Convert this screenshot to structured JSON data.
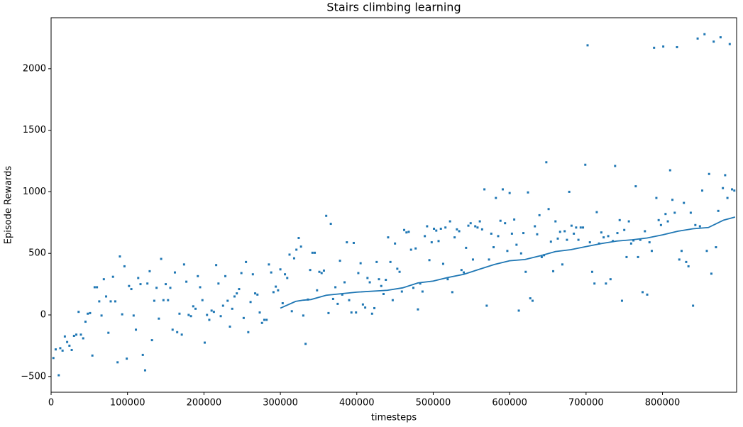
{
  "chart_data": {
    "type": "scatter",
    "title": "Stairs climbing learning",
    "xlabel": "timesteps",
    "ylabel": "Episode Rewards",
    "xlim": [
      0,
      897000
    ],
    "ylim": [
      -628,
      2414
    ],
    "xticks": [
      0,
      100000,
      200000,
      300000,
      400000,
      500000,
      600000,
      700000,
      800000
    ],
    "yticks": [
      {
        "value": -500,
        "label": "−500"
      },
      0,
      500,
      1000,
      1500,
      2000
    ],
    "series": [
      {
        "type": "scatter",
        "color": "#1f77b4",
        "x": [
          3000,
          6000,
          10000,
          12000,
          15000,
          18000,
          21000,
          24000,
          27000,
          30000,
          33000,
          36000,
          39000,
          42000,
          45000,
          48000,
          51000,
          54000,
          57000,
          60000,
          63000,
          66000,
          69000,
          72000,
          75000,
          78000,
          81000,
          84000,
          87000,
          90000,
          93000,
          96000,
          99000,
          102000,
          105000,
          108000,
          111000,
          114000,
          117000,
          120000,
          123000,
          126000,
          129000,
          132000,
          135000,
          138000,
          141000,
          144000,
          147000,
          150000,
          153000,
          156000,
          159000,
          162000,
          165000,
          168000,
          171000,
          174000,
          177000,
          180000,
          183000,
          186000,
          189000,
          192000,
          195000,
          198000,
          201000,
          204000,
          207000,
          210000,
          213000,
          216000,
          219000,
          222000,
          225000,
          228000,
          231000,
          234000,
          237000,
          240000,
          243000,
          246000,
          249000,
          252000,
          255000,
          258000,
          261000,
          264000,
          267000,
          270000,
          273000,
          276000,
          279000,
          282000,
          285000,
          288000,
          291000,
          294000,
          297000,
          300000,
          303000,
          306000,
          309000,
          312000,
          315000,
          318000,
          321000,
          324000,
          327000,
          330000,
          333000,
          336000,
          339000,
          342000,
          345000,
          348000,
          351000,
          354000,
          357000,
          360000,
          363000,
          366000,
          369000,
          372000,
          375000,
          378000,
          381000,
          384000,
          387000,
          390000,
          393000,
          396000,
          399000,
          402000,
          405000,
          408000,
          411000,
          414000,
          417000,
          420000,
          423000,
          426000,
          429000,
          432000,
          435000,
          438000,
          441000,
          444000,
          447000,
          450000,
          453000,
          456000,
          459000,
          462000,
          465000,
          468000,
          471000,
          474000,
          477000,
          480000,
          483000,
          486000,
          489000,
          492000,
          495000,
          498000,
          501000,
          504000,
          507000,
          510000,
          513000,
          516000,
          519000,
          522000,
          525000,
          528000,
          531000,
          534000,
          537000,
          540000,
          543000,
          546000,
          549000,
          552000,
          555000,
          558000,
          561000,
          564000,
          567000,
          570000,
          573000,
          576000,
          579000,
          582000,
          585000,
          588000,
          591000,
          594000,
          597000,
          600000,
          603000,
          606000,
          609000,
          612000,
          615000,
          618000,
          621000,
          624000,
          627000,
          630000,
          633000,
          636000,
          639000,
          642000,
          645000,
          648000,
          651000,
          654000,
          657000,
          660000,
          663000,
          666000,
          669000,
          672000,
          675000,
          678000,
          681000,
          684000,
          687000,
          690000,
          693000,
          696000,
          699000,
          702000,
          705000,
          708000,
          711000,
          714000,
          717000,
          720000,
          723000,
          726000,
          729000,
          732000,
          735000,
          738000,
          741000,
          744000,
          747000,
          750000,
          753000,
          756000,
          759000,
          762000,
          765000,
          768000,
          771000,
          774000,
          777000,
          780000,
          783000,
          786000,
          789000,
          792000,
          795000,
          798000,
          801000,
          804000,
          807000,
          810000,
          813000,
          816000,
          819000,
          822000,
          825000,
          828000,
          831000,
          834000,
          837000,
          840000,
          843000,
          846000,
          849000,
          852000,
          855000,
          858000,
          861000,
          864000,
          867000,
          870000,
          873000,
          876000,
          879000,
          882000,
          885000,
          888000,
          891000,
          894000
        ],
        "values": [
          -350,
          -280,
          -490,
          -270,
          -290,
          -175,
          -220,
          -250,
          -285,
          -170,
          -160,
          25,
          -160,
          -190,
          -55,
          10,
          15,
          -330,
          225,
          225,
          110,
          -5,
          290,
          150,
          -145,
          110,
          310,
          110,
          -385,
          475,
          5,
          395,
          -355,
          235,
          210,
          -5,
          -120,
          300,
          250,
          -325,
          -450,
          255,
          355,
          -205,
          115,
          220,
          -30,
          455,
          120,
          250,
          120,
          220,
          -120,
          345,
          -140,
          10,
          -160,
          410,
          270,
          0,
          -10,
          70,
          50,
          315,
          225,
          120,
          -225,
          0,
          -40,
          35,
          25,
          405,
          255,
          -10,
          75,
          315,
          115,
          -95,
          50,
          150,
          175,
          210,
          340,
          -25,
          430,
          -140,
          105,
          330,
          175,
          165,
          20,
          -65,
          -40,
          -40,
          410,
          345,
          185,
          230,
          200,
          370,
          95,
          330,
          300,
          490,
          30,
          460,
          530,
          625,
          555,
          -5,
          -235,
          125,
          365,
          505,
          505,
          200,
          350,
          340,
          360,
          805,
          15,
          740,
          130,
          225,
          90,
          440,
          165,
          265,
          590,
          120,
          20,
          585,
          20,
          340,
          420,
          85,
          60,
          300,
          265,
          10,
          55,
          430,
          290,
          235,
          170,
          285,
          630,
          430,
          120,
          580,
          375,
          350,
          190,
          690,
          670,
          675,
          530,
          220,
          540,
          45,
          255,
          190,
          640,
          720,
          445,
          590,
          700,
          685,
          600,
          700,
          415,
          710,
          290,
          760,
          185,
          630,
          695,
          680,
          365,
          345,
          545,
          725,
          745,
          450,
          720,
          710,
          760,
          695,
          1020,
          75,
          450,
          660,
          550,
          950,
          640,
          765,
          1020,
          745,
          520,
          990,
          660,
          775,
          570,
          35,
          500,
          665,
          350,
          995,
          135,
          115,
          720,
          655,
          810,
          470,
          485,
          1240,
          860,
          595,
          355,
          760,
          620,
          675,
          410,
          680,
          610,
          1000,
          725,
          660,
          710,
          610,
          710,
          710,
          1220,
          2190,
          590,
          350,
          255,
          835,
          580,
          670,
          630,
          255,
          640,
          290,
          600,
          1210,
          665,
          770,
          115,
          690,
          470,
          760,
          580,
          605,
          1045,
          470,
          610,
          185,
          680,
          165,
          590,
          520,
          2170,
          950,
          770,
          730,
          2180,
          820,
          760,
          1175,
          935,
          830,
          2175,
          450,
          520,
          910,
          430,
          395,
          830,
          75,
          730,
          2245,
          720,
          1010,
          2280,
          520,
          1145,
          335,
          2220,
          550,
          845,
          2255,
          1030,
          1135,
          950,
          2200,
          1020,
          1010
        ]
      },
      {
        "type": "line",
        "color": "#1f77b4",
        "x": [
          300000,
          320000,
          330000,
          340000,
          360000,
          400000,
          440000,
          460000,
          480000,
          500000,
          520000,
          540000,
          560000,
          580000,
          600000,
          620000,
          640000,
          660000,
          680000,
          700000,
          720000,
          740000,
          760000,
          780000,
          800000,
          820000,
          840000,
          860000,
          870000,
          880000,
          895000
        ],
        "values": [
          55,
          110,
          120,
          125,
          160,
          185,
          200,
          220,
          260,
          275,
          305,
          330,
          370,
          410,
          440,
          450,
          480,
          515,
          530,
          555,
          580,
          600,
          610,
          625,
          650,
          680,
          700,
          710,
          740,
          770,
          795
        ]
      }
    ]
  }
}
